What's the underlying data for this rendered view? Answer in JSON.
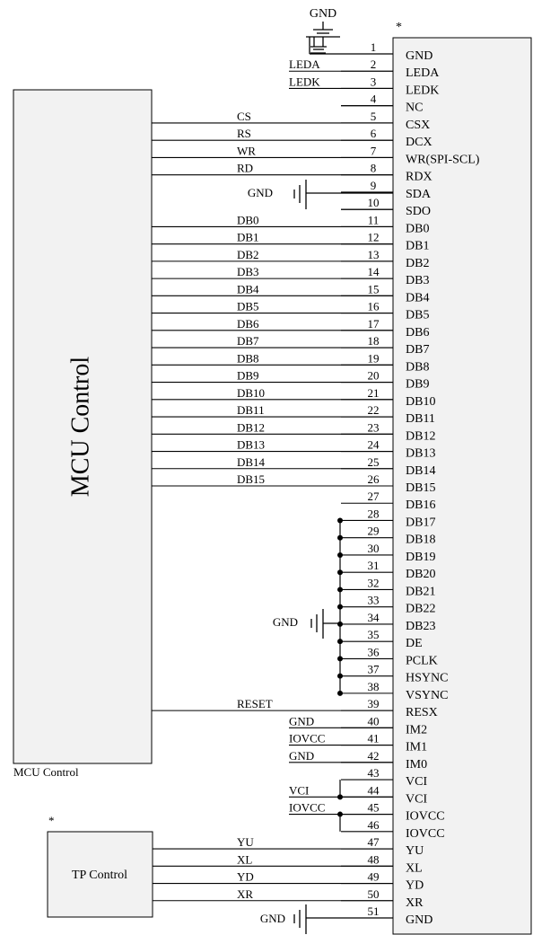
{
  "top_ground_label": "GND",
  "connector_marker": "*",
  "tp_marker": "*",
  "mcu": {
    "title": "MCU Control",
    "caption": "MCU Control"
  },
  "tp": {
    "title": "TP Control"
  },
  "pins": [
    {
      "num": "1",
      "name": "GND"
    },
    {
      "num": "2",
      "name": "LEDA"
    },
    {
      "num": "3",
      "name": "LEDK"
    },
    {
      "num": "4",
      "name": "NC"
    },
    {
      "num": "5",
      "name": "CSX"
    },
    {
      "num": "6",
      "name": "DCX"
    },
    {
      "num": "7",
      "name": "WR(SPI-SCL)"
    },
    {
      "num": "8",
      "name": "RDX"
    },
    {
      "num": "9",
      "name": "SDA"
    },
    {
      "num": "10",
      "name": "SDO"
    },
    {
      "num": "11",
      "name": "DB0"
    },
    {
      "num": "12",
      "name": "DB1"
    },
    {
      "num": "13",
      "name": "DB2"
    },
    {
      "num": "14",
      "name": "DB3"
    },
    {
      "num": "15",
      "name": "DB4"
    },
    {
      "num": "16",
      "name": "DB5"
    },
    {
      "num": "17",
      "name": "DB6"
    },
    {
      "num": "18",
      "name": "DB7"
    },
    {
      "num": "19",
      "name": "DB8"
    },
    {
      "num": "20",
      "name": "DB9"
    },
    {
      "num": "21",
      "name": "DB10"
    },
    {
      "num": "22",
      "name": "DB11"
    },
    {
      "num": "23",
      "name": "DB12"
    },
    {
      "num": "24",
      "name": "DB13"
    },
    {
      "num": "25",
      "name": "DB14"
    },
    {
      "num": "26",
      "name": "DB15"
    },
    {
      "num": "27",
      "name": "DB16"
    },
    {
      "num": "28",
      "name": "DB17"
    },
    {
      "num": "29",
      "name": "DB18"
    },
    {
      "num": "30",
      "name": "DB19"
    },
    {
      "num": "31",
      "name": "DB20"
    },
    {
      "num": "32",
      "name": "DB21"
    },
    {
      "num": "33",
      "name": "DB22"
    },
    {
      "num": "34",
      "name": "DB23"
    },
    {
      "num": "35",
      "name": "DE"
    },
    {
      "num": "36",
      "name": "PCLK"
    },
    {
      "num": "37",
      "name": "HSYNC"
    },
    {
      "num": "38",
      "name": "VSYNC"
    },
    {
      "num": "39",
      "name": "RESX"
    },
    {
      "num": "40",
      "name": "IM2"
    },
    {
      "num": "41",
      "name": "IM1"
    },
    {
      "num": "42",
      "name": "IM0"
    },
    {
      "num": "43",
      "name": "VCI"
    },
    {
      "num": "44",
      "name": "VCI"
    },
    {
      "num": "45",
      "name": "IOVCC"
    },
    {
      "num": "46",
      "name": "IOVCC"
    },
    {
      "num": "47",
      "name": "YU"
    },
    {
      "num": "48",
      "name": "XL"
    },
    {
      "num": "49",
      "name": "YD"
    },
    {
      "num": "50",
      "name": "XR"
    },
    {
      "num": "51",
      "name": "GND"
    }
  ],
  "mcu_signals": [
    {
      "pin": 5,
      "label": "CS"
    },
    {
      "pin": 6,
      "label": "RS"
    },
    {
      "pin": 7,
      "label": "WR"
    },
    {
      "pin": 8,
      "label": "RD"
    },
    {
      "pin": 11,
      "label": "DB0"
    },
    {
      "pin": 12,
      "label": "DB1"
    },
    {
      "pin": 13,
      "label": "DB2"
    },
    {
      "pin": 14,
      "label": "DB3"
    },
    {
      "pin": 15,
      "label": "DB4"
    },
    {
      "pin": 16,
      "label": "DB5"
    },
    {
      "pin": 17,
      "label": "DB6"
    },
    {
      "pin": 18,
      "label": "DB7"
    },
    {
      "pin": 19,
      "label": "DB8"
    },
    {
      "pin": 20,
      "label": "DB9"
    },
    {
      "pin": 21,
      "label": "DB10"
    },
    {
      "pin": 22,
      "label": "DB11"
    },
    {
      "pin": 23,
      "label": "DB12"
    },
    {
      "pin": 24,
      "label": "DB13"
    },
    {
      "pin": 25,
      "label": "DB14"
    },
    {
      "pin": 26,
      "label": "DB15"
    },
    {
      "pin": 39,
      "label": "RESET"
    }
  ],
  "short_nets": [
    {
      "pin": 2,
      "label": "LEDA"
    },
    {
      "pin": 3,
      "label": "LEDK"
    },
    {
      "pin": 40,
      "label": "GND"
    },
    {
      "pin": 41,
      "label": "IOVCC"
    },
    {
      "pin": 42,
      "label": "GND"
    },
    {
      "pin": 44,
      "label": "VCI"
    },
    {
      "pin": 45,
      "label": "IOVCC"
    }
  ],
  "tp_signals": [
    {
      "pin": 47,
      "label": "YU"
    },
    {
      "pin": 48,
      "label": "XL"
    },
    {
      "pin": 49,
      "label": "YD"
    },
    {
      "pin": 50,
      "label": "XR"
    }
  ],
  "ground_labels": {
    "sda": "GND",
    "bus": "GND",
    "bottom": "GND"
  }
}
